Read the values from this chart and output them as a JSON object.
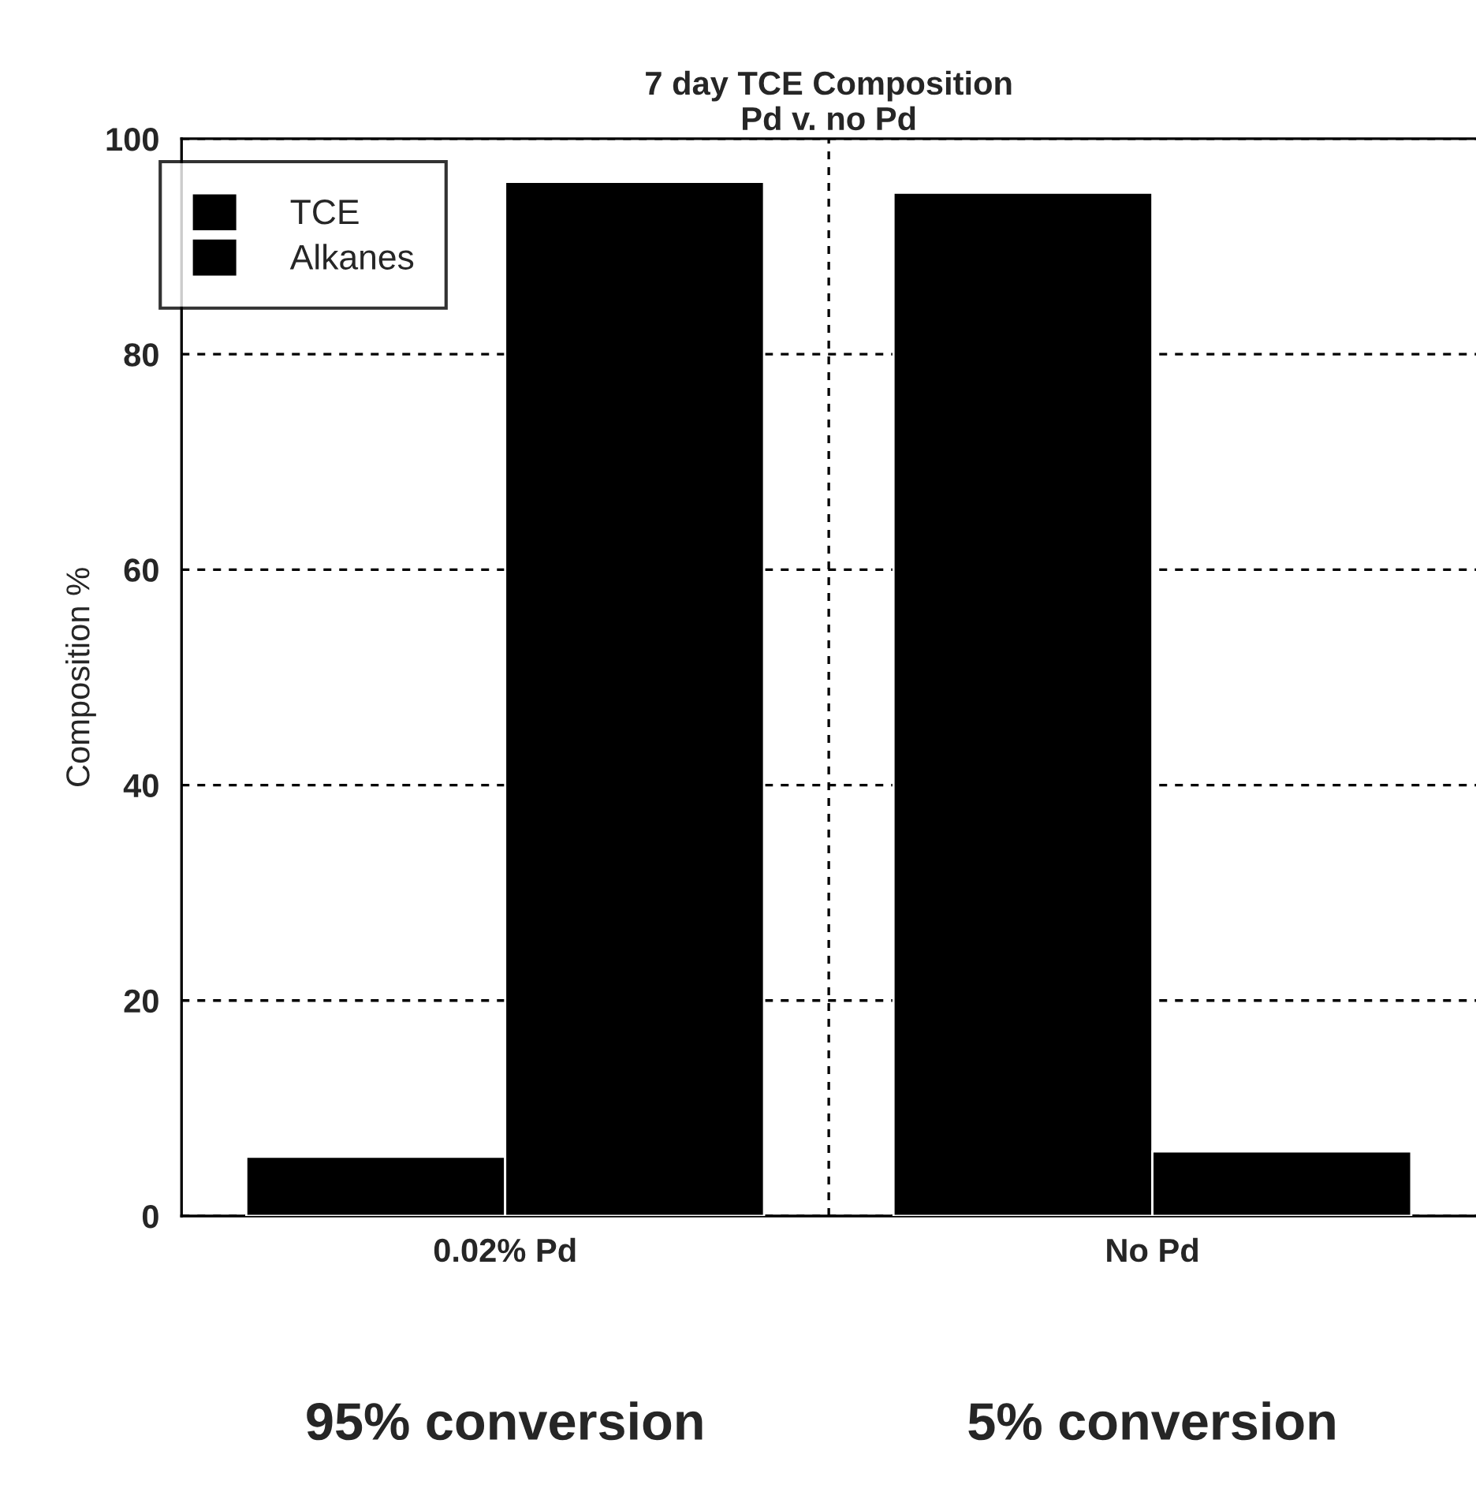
{
  "chart_data": {
    "type": "bar",
    "title": "7 day TCE Composition\nPd v. no Pd",
    "ylabel": "Composition %",
    "categories": [
      "0.02% Pd",
      "No Pd"
    ],
    "series": [
      {
        "name": "TCE",
        "color": "#000000",
        "values": [
          5.5,
          95
        ]
      },
      {
        "name": "Alkanes",
        "color": "#000000",
        "values": [
          96,
          6
        ]
      }
    ],
    "ylim": [
      0,
      100
    ],
    "yticks": [
      0,
      20,
      40,
      60,
      80,
      100
    ],
    "grid": true,
    "legend": "top left",
    "annotations": [
      "95% conversion",
      "5% conversion"
    ]
  }
}
